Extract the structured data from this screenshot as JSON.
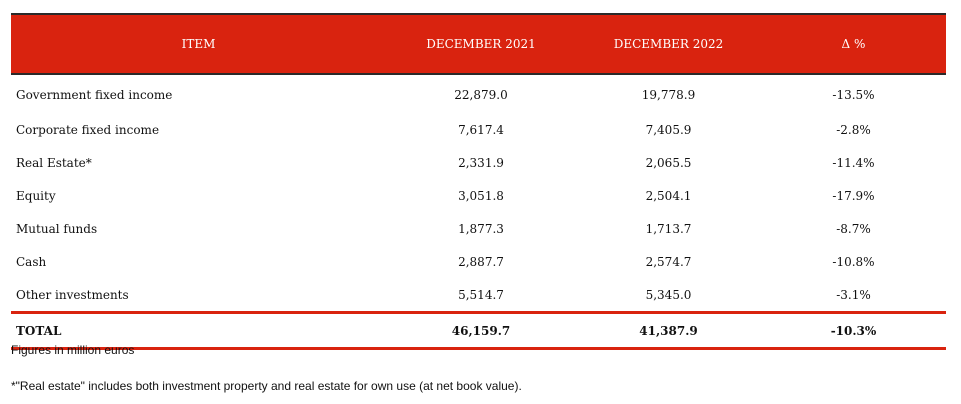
{
  "table": {
    "headers": [
      "ITEM",
      "DECEMBER 2021",
      "DECEMBER 2022",
      "Δ %"
    ],
    "rows": [
      {
        "item": "Government fixed income",
        "dec2021": "22,879.0",
        "dec2022": "19,778.9",
        "delta": "-13.5%"
      },
      {
        "item": "Corporate fixed income",
        "dec2021": "7,617.4",
        "dec2022": "7,405.9",
        "delta": "-2.8%"
      },
      {
        "item": "Real Estate*",
        "dec2021": "2,331.9",
        "dec2022": "2,065.5",
        "delta": "-11.4%"
      },
      {
        "item": "Equity",
        "dec2021": "3,051.8",
        "dec2022": "2,504.1",
        "delta": "-17.9%"
      },
      {
        "item": "Mutual funds",
        "dec2021": "1,877.3",
        "dec2022": "1,713.7",
        "delta": "-8.7%"
      },
      {
        "item": "Cash",
        "dec2021": "2,887.7",
        "dec2022": "2,574.7",
        "delta": "-10.8%"
      },
      {
        "item": "Other investments",
        "dec2021": "5,514.7",
        "dec2022": "5,345.0",
        "delta": "-3.1%"
      }
    ],
    "total": {
      "item": "TOTAL",
      "dec2021": "46,159.7",
      "dec2022": "41,387.9",
      "delta": "-10.3%"
    }
  },
  "notes": {
    "units": "Figures in million euros",
    "footnote": "*\"Real estate\" includes both investment property and real estate for own use (at net book value)."
  },
  "colors": {
    "header_background": "#d9230f",
    "header_text": "#ffffff",
    "total_rule": "#d9230f"
  }
}
